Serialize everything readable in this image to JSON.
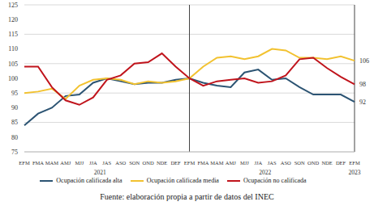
{
  "chart_data": {
    "type": "line",
    "caption": "Fuente: elaboración propia a partir de datos del INEC",
    "categories": [
      "EFM",
      "FMA",
      "MAM",
      "AMJ",
      "MJJ",
      "JJA",
      "JAS",
      "ASO",
      "SON",
      "OND",
      "NDE",
      "DEF",
      "EFM",
      "FMA",
      "MAM",
      "AMJ",
      "MJJ",
      "JJA",
      "JAS",
      "ASO",
      "SON",
      "OND",
      "NDE",
      "DEF",
      "EFM"
    ],
    "groups": [
      {
        "label": "2021",
        "count": 12
      },
      {
        "label": "2022",
        "count": 12
      },
      {
        "label": "2023",
        "count": 1
      }
    ],
    "series": [
      {
        "name": "Ocupación calificada alta",
        "color": "#2c5473",
        "values": [
          84,
          88,
          90,
          94,
          94.5,
          98.5,
          100,
          99,
          98,
          98.5,
          98.5,
          99.5,
          100,
          98.5,
          97.5,
          97,
          102,
          103,
          99.5,
          100,
          97,
          94.5,
          94.5,
          94.5,
          92
        ],
        "value_labels": [
          null,
          null,
          null,
          null,
          null,
          null,
          null,
          null,
          null,
          null,
          null,
          null,
          null,
          null,
          null,
          null,
          null,
          null,
          null,
          null,
          null,
          null,
          null,
          null,
          "92"
        ]
      },
      {
        "name": "Ocupación calificada media",
        "color": "#f2c230",
        "values": [
          95,
          95.5,
          96.5,
          93,
          97.5,
          99.5,
          100,
          99.5,
          98,
          99,
          98.5,
          99,
          100,
          104,
          107,
          107.5,
          106.5,
          107.5,
          110,
          109.5,
          107,
          107,
          106.5,
          107.5,
          106
        ],
        "value_labels": [
          null,
          null,
          null,
          null,
          null,
          null,
          null,
          null,
          null,
          null,
          null,
          null,
          null,
          null,
          null,
          null,
          null,
          null,
          null,
          null,
          null,
          null,
          null,
          null,
          "106"
        ]
      },
      {
        "name": "Ocupación no calificada",
        "color": "#c0141c",
        "values": [
          104,
          104,
          97,
          92.5,
          91,
          93.5,
          99.5,
          101,
          105,
          105.5,
          108.5,
          104,
          100,
          97.5,
          99,
          99.5,
          100,
          98.5,
          99,
          101,
          106.5,
          107,
          103.5,
          100.5,
          98
        ],
        "value_labels": [
          null,
          null,
          null,
          null,
          null,
          null,
          null,
          null,
          null,
          null,
          null,
          null,
          null,
          null,
          null,
          null,
          null,
          null,
          null,
          null,
          null,
          null,
          null,
          null,
          "98"
        ]
      }
    ],
    "ylim": [
      75,
      125
    ],
    "yticks": [
      75,
      80,
      85,
      90,
      95,
      100,
      105,
      110,
      115,
      120,
      125
    ],
    "grid": true,
    "legend": "bottom"
  }
}
